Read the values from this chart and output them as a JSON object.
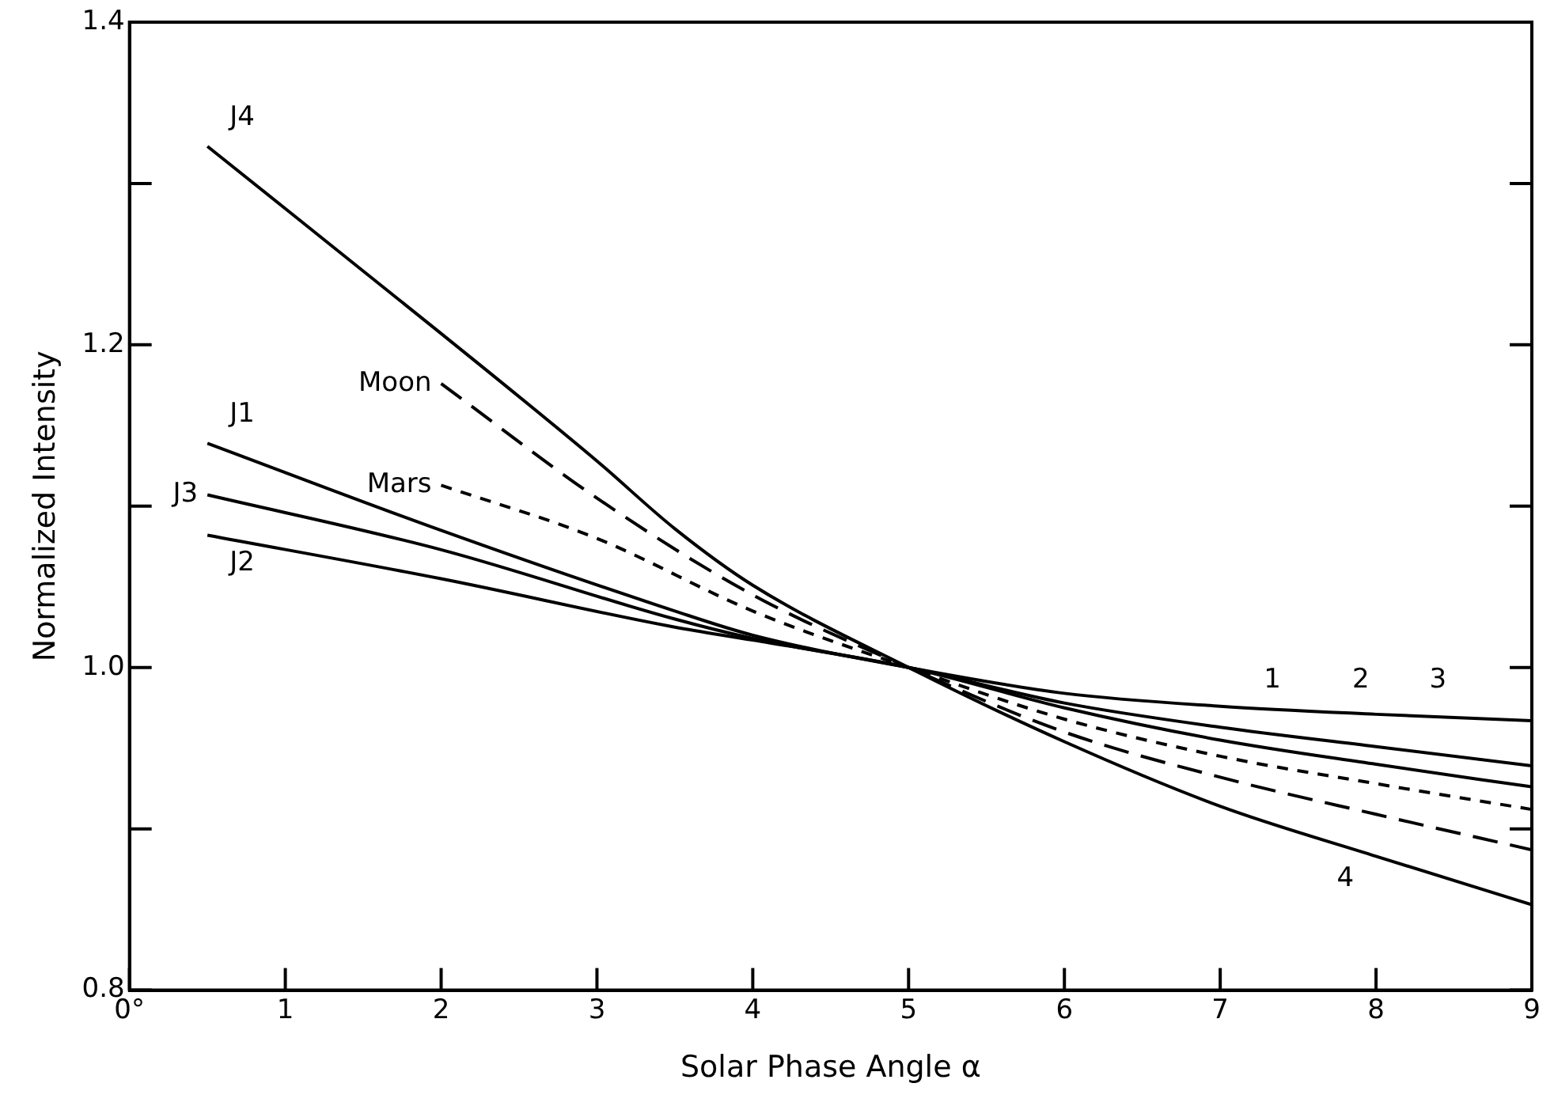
{
  "chart_data": {
    "type": "line",
    "xlabel": "Solar Phase Angle α",
    "ylabel": "Normalized Intensity",
    "xlim": [
      0,
      9
    ],
    "ylim": [
      0.8,
      1.4
    ],
    "xticks": [
      {
        "value": 0,
        "label": "0°"
      },
      1,
      2,
      3,
      4,
      5,
      6,
      7,
      8,
      9
    ],
    "yticks": [
      0.8,
      {
        "value": 0.9,
        "label": null
      },
      {
        "value": 1.0,
        "label": "1.0"
      },
      {
        "value": 1.1,
        "label": null
      },
      1.2,
      {
        "value": 1.3,
        "label": null
      },
      1.4
    ],
    "grid": false,
    "legend": false,
    "marker": "none",
    "series": [
      {
        "name": "J4",
        "color": "#000000",
        "line_style": "solid",
        "x": [
          0.5,
          2,
          3,
          3.5,
          4,
          5,
          6,
          7,
          8,
          9
        ],
        "values": [
          1.323,
          1.207,
          1.128,
          1.086,
          1.051,
          1.0,
          0.954,
          0.914,
          0.883,
          0.853
        ]
      },
      {
        "name": "J1",
        "color": "#000000",
        "line_style": "solid",
        "x": [
          0.5,
          2,
          3.5,
          4,
          5,
          6,
          7,
          8,
          9
        ],
        "values": [
          1.139,
          1.085,
          1.035,
          1.02,
          1.0,
          0.984,
          0.976,
          0.971,
          0.967
        ]
      },
      {
        "name": "J3",
        "color": "#000000",
        "line_style": "solid",
        "x": [
          0.5,
          2,
          3.5,
          4,
          5,
          6,
          7,
          8,
          9
        ],
        "values": [
          1.107,
          1.073,
          1.03,
          1.018,
          1.0,
          0.978,
          0.963,
          0.951,
          0.939
        ]
      },
      {
        "name": "J2",
        "color": "#000000",
        "line_style": "solid",
        "x": [
          0.5,
          2,
          3.5,
          4,
          5,
          6,
          7,
          8,
          9
        ],
        "values": [
          1.082,
          1.055,
          1.025,
          1.017,
          1.0,
          0.975,
          0.955,
          0.94,
          0.926
        ]
      },
      {
        "name": "Moon",
        "color": "#000000",
        "line_style": "dashed",
        "x": [
          2,
          3,
          4,
          5,
          6,
          7,
          8,
          9
        ],
        "values": [
          1.176,
          1.105,
          1.045,
          1.0,
          0.96,
          0.932,
          0.909,
          0.887
        ]
      },
      {
        "name": "Mars",
        "color": "#000000",
        "line_style": "dotted",
        "x": [
          2,
          3,
          4,
          5,
          6,
          7,
          8,
          9
        ],
        "values": [
          1.113,
          1.08,
          1.035,
          1.0,
          0.968,
          0.945,
          0.928,
          0.912
        ]
      }
    ],
    "annotations": [
      "1",
      "2",
      "3",
      "4"
    ]
  }
}
